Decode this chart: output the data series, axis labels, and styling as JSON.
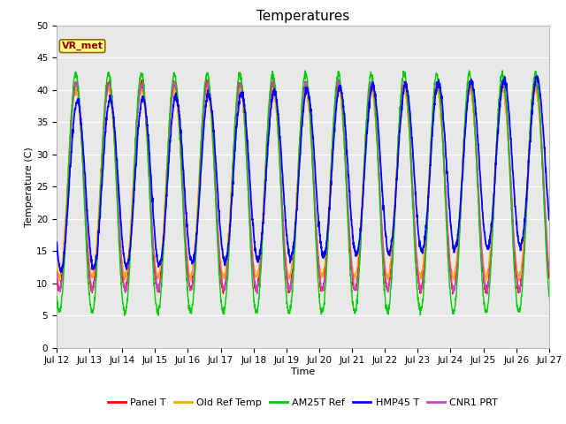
{
  "title": "Temperatures",
  "xlabel": "Time",
  "ylabel": "Temperature (C)",
  "ylim": [
    0,
    50
  ],
  "yticks": [
    0,
    5,
    10,
    15,
    20,
    25,
    30,
    35,
    40,
    45,
    50
  ],
  "xtick_labels": [
    "Jul 12",
    "Jul 13",
    "Jul 14",
    "Jul 15",
    "Jul 16",
    "Jul 17",
    "Jul 18",
    "Jul 19",
    "Jul 20",
    "Jul 21",
    "Jul 22",
    "Jul 23",
    "Jul 24",
    "Jul 25",
    "Jul 26",
    "Jul 27"
  ],
  "annotation_text": "VR_met",
  "series_colors": {
    "Panel T": "#ff0000",
    "Old Ref Temp": "#ffa500",
    "AM25T Ref": "#00cc00",
    "HMP45 T": "#0000ff",
    "CNR1 PRT": "#cc44cc"
  },
  "series_names": [
    "Panel T",
    "Old Ref Temp",
    "AM25T Ref",
    "HMP45 T",
    "CNR1 PRT"
  ],
  "bg_color": "#e8e8e8",
  "fig_color": "#ffffff",
  "num_days": 15,
  "points_per_day": 144,
  "title_fontsize": 11,
  "axis_label_fontsize": 8,
  "tick_fontsize": 7.5,
  "legend_fontsize": 8
}
